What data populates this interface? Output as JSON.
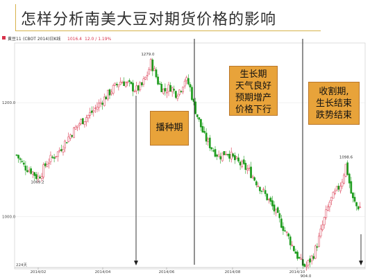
{
  "slide": {
    "title": "怎样分析南美大豆对期货价格的影响"
  },
  "header_bar": {
    "instrument": "黄豆11",
    "code_info": "(CBOT 2014)日K线",
    "last_price": "1016.4",
    "change": "12.0 / 1.19%"
  },
  "annotations": {
    "planting": [
      "播种期"
    ],
    "growing": [
      "生长期",
      "天气良好",
      "预期增产",
      "价格下行"
    ],
    "harvest": [
      "收割期,",
      "生长结束",
      "跌势结束"
    ]
  },
  "colors": {
    "up_candle": "#d8324a",
    "down_candle": "#1f9d1f",
    "annotation_fill": "#e8a33a",
    "title_accent": "#d6b24a"
  },
  "chart_data": {
    "type": "candlestick",
    "title": "",
    "x_tick_labels": [
      "2014/02",
      "2014/04",
      "2014/06",
      "2014/08",
      "2014/10"
    ],
    "y_tick_labels": [
      "1200.0",
      "1000.0"
    ],
    "y_ticks": [
      1200,
      1000
    ],
    "ylim": [
      920,
      1300
    ],
    "period_label": "224天",
    "price_labels": [
      {
        "text": "1069.2",
        "value": 1069.2
      },
      {
        "text": "1279.0",
        "value": 1279.0
      },
      {
        "text": "904.0",
        "value": 904.0
      },
      {
        "text": "1098.6",
        "value": 1098.6
      }
    ],
    "price_path": [
      {
        "x": 0,
        "v": 1108
      },
      {
        "x": 10,
        "v": 1088
      },
      {
        "x": 20,
        "v": 1080
      },
      {
        "x": 28,
        "v": 1068
      },
      {
        "x": 33,
        "v": 1076
      },
      {
        "x": 40,
        "v": 1094
      },
      {
        "x": 55,
        "v": 1112
      },
      {
        "x": 70,
        "v": 1140
      },
      {
        "x": 85,
        "v": 1165
      },
      {
        "x": 100,
        "v": 1182
      },
      {
        "x": 110,
        "v": 1196
      },
      {
        "x": 118,
        "v": 1208
      },
      {
        "x": 126,
        "v": 1220
      },
      {
        "x": 135,
        "v": 1232
      },
      {
        "x": 140,
        "v": 1238
      },
      {
        "x": 150,
        "v": 1232
      },
      {
        "x": 160,
        "v": 1222
      },
      {
        "x": 168,
        "v": 1230
      },
      {
        "x": 176,
        "v": 1252
      },
      {
        "x": 180,
        "v": 1270
      },
      {
        "x": 184,
        "v": 1258
      },
      {
        "x": 190,
        "v": 1235
      },
      {
        "x": 198,
        "v": 1220
      },
      {
        "x": 206,
        "v": 1228
      },
      {
        "x": 214,
        "v": 1216
      },
      {
        "x": 220,
        "v": 1224
      },
      {
        "x": 226,
        "v": 1242
      },
      {
        "x": 232,
        "v": 1230
      },
      {
        "x": 238,
        "v": 1195
      },
      {
        "x": 244,
        "v": 1170
      },
      {
        "x": 252,
        "v": 1140
      },
      {
        "x": 262,
        "v": 1120
      },
      {
        "x": 272,
        "v": 1105
      },
      {
        "x": 282,
        "v": 1115
      },
      {
        "x": 292,
        "v": 1100
      },
      {
        "x": 302,
        "v": 1090
      },
      {
        "x": 312,
        "v": 1080
      },
      {
        "x": 322,
        "v": 1060
      },
      {
        "x": 330,
        "v": 1045
      },
      {
        "x": 340,
        "v": 1025
      },
      {
        "x": 348,
        "v": 1005
      },
      {
        "x": 356,
        "v": 985
      },
      {
        "x": 364,
        "v": 965
      },
      {
        "x": 370,
        "v": 948
      },
      {
        "x": 375,
        "v": 935
      },
      {
        "x": 380,
        "v": 922
      },
      {
        "x": 384,
        "v": 915
      },
      {
        "x": 388,
        "v": 912
      },
      {
        "x": 393,
        "v": 922
      },
      {
        "x": 398,
        "v": 932
      },
      {
        "x": 405,
        "v": 958
      },
      {
        "x": 412,
        "v": 992
      },
      {
        "x": 420,
        "v": 1025
      },
      {
        "x": 428,
        "v": 1042
      },
      {
        "x": 436,
        "v": 1060
      },
      {
        "x": 442,
        "v": 1092
      },
      {
        "x": 446,
        "v": 1062
      },
      {
        "x": 450,
        "v": 1032
      },
      {
        "x": 456,
        "v": 1018
      },
      {
        "x": 462,
        "v": 1016
      }
    ]
  }
}
